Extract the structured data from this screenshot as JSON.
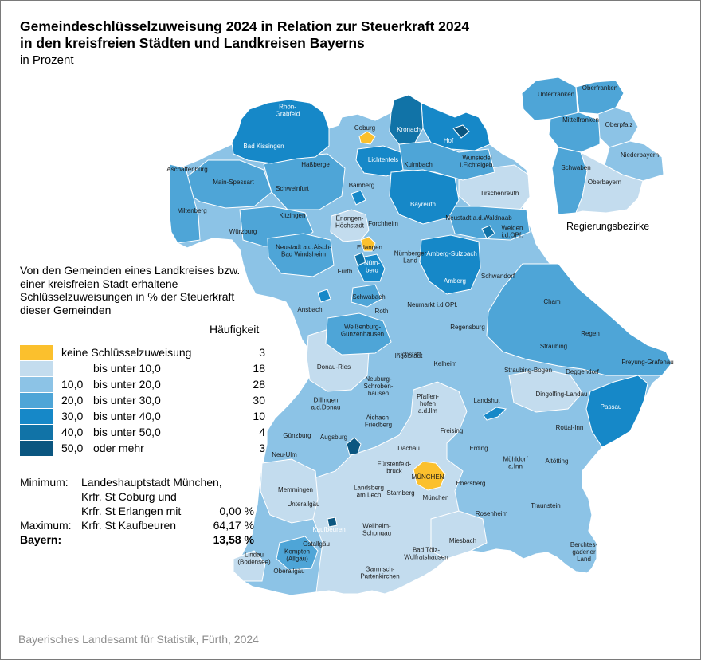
{
  "title_line1": "Gemeindeschlüsselzuweisung 2024 in Relation zur Steuerkraft 2024",
  "title_line2": "in den kreisfreien Städten und Landkreisen Bayerns",
  "subtitle": "in Prozent",
  "legend": {
    "description": "Von den Gemeinden eines Landkreises bzw. einer kreisfreien Stadt erhaltene Schlüsselzuweisungen in % der Steuerkraft dieser Gemeinden",
    "frequency_header": "Häufigkeit",
    "classes": [
      {
        "from": "",
        "label": "keine Schlüsselzuweisung",
        "count": "3",
        "color": "#fbc02d"
      },
      {
        "from": "",
        "label": "bis unter  10,0",
        "count": "18",
        "color": "#c3dcee"
      },
      {
        "from": "10,0",
        "label": "bis unter  20,0",
        "count": "28",
        "color": "#8cc3e6"
      },
      {
        "from": "20,0",
        "label": "bis unter  30,0",
        "count": "30",
        "color": "#4ea5d7"
      },
      {
        "from": "30,0",
        "label": "bis unter  40,0",
        "count": "10",
        "color": "#1688c8"
      },
      {
        "from": "40,0",
        "label": "bis unter  50,0",
        "count": "4",
        "color": "#1173a7"
      },
      {
        "from": "50,0",
        "label": "oder mehr",
        "count": "3",
        "color": "#0b5680"
      }
    ]
  },
  "stats": {
    "minimum_label": "Minimum:",
    "minimum_line1": "Landeshauptstadt München,",
    "minimum_line2": "Krfr. St Coburg und",
    "minimum_line3": "Krfr. St Erlangen mit",
    "minimum_value": "0,00 %",
    "maximum_label": "Maximum:",
    "maximum_name": "Krfr. St Kaufbeuren",
    "maximum_value": "64,17 %",
    "bayern_label": "Bayern:",
    "bayern_value": "13,58 %"
  },
  "inset_caption": "Regierungsbezirke",
  "source": "Bayerisches Landesamt für Statistik, Fürth, 2024",
  "map_regions": [
    {
      "name": "Rhön-Grabfeld",
      "class": 4
    },
    {
      "name": "Bad Kissingen",
      "class": 4
    },
    {
      "name": "Coburg",
      "class": 0
    },
    {
      "name": "Kronach",
      "class": 5
    },
    {
      "name": "Hof",
      "class": 4
    },
    {
      "name": "Lichtenfels",
      "class": 4
    },
    {
      "name": "Kulmbach",
      "class": 3
    },
    {
      "name": "Wunsiedel i.Fichtelgeb.",
      "class": 3
    },
    {
      "name": "Aschaffenburg",
      "class": 3
    },
    {
      "name": "Main-Spessart",
      "class": 3
    },
    {
      "name": "Haßberge",
      "class": 3
    },
    {
      "name": "Schweinfurt",
      "class": 3
    },
    {
      "name": "Bamberg",
      "class": 2
    },
    {
      "name": "Bayreuth",
      "class": 4
    },
    {
      "name": "Tirschenreuth",
      "class": 1
    },
    {
      "name": "Miltenberg",
      "class": 3
    },
    {
      "name": "Kitzingen",
      "class": 3
    },
    {
      "name": "Würzburg",
      "class": 3
    },
    {
      "name": "Erlangen-Höchstadt",
      "class": 1
    },
    {
      "name": "Forchheim",
      "class": 2
    },
    {
      "name": "Neustadt a.d.Waldnaab",
      "class": 3
    },
    {
      "name": "Weiden i.d.OPf.",
      "class": 3
    },
    {
      "name": "Erlangen",
      "class": 0
    },
    {
      "name": "Neustadt a.d.Aisch-Bad Windsheim",
      "class": 3
    },
    {
      "name": "Nürnberger Land",
      "class": 2
    },
    {
      "name": "Amberg-Sulzbach",
      "class": 4
    },
    {
      "name": "Amberg",
      "class": 4
    },
    {
      "name": "Fürth",
      "class": 3
    },
    {
      "name": "Nürnberg",
      "class": 4
    },
    {
      "name": "Schwandorf",
      "class": 2
    },
    {
      "name": "Ansbach",
      "class": 2
    },
    {
      "name": "Schwabach",
      "class": 3
    },
    {
      "name": "Roth",
      "class": 2
    },
    {
      "name": "Neumarkt i.d.OPf.",
      "class": 2
    },
    {
      "name": "Cham",
      "class": 3
    },
    {
      "name": "Weißenburg-Gunzenhausen",
      "class": 3
    },
    {
      "name": "Regensburg",
      "class": 2
    },
    {
      "name": "Regen",
      "class": 3
    },
    {
      "name": "Eichstätt",
      "class": 2
    },
    {
      "name": "Straubing",
      "class": 3
    },
    {
      "name": "Freyung-Grafenau",
      "class": 3
    },
    {
      "name": "Donau-Ries",
      "class": 1
    },
    {
      "name": "Ingolstadt",
      "class": 2
    },
    {
      "name": "Kelheim",
      "class": 2
    },
    {
      "name": "Straubing-Bogen",
      "class": 3
    },
    {
      "name": "Deggendorf",
      "class": 2
    },
    {
      "name": "Neuburg-Schrobenhausen",
      "class": 2
    },
    {
      "name": "Landshut",
      "class": 2
    },
    {
      "name": "Dingolfing-Landau",
      "class": 1
    },
    {
      "name": "Dillingen a.d.Donau",
      "class": 2
    },
    {
      "name": "Pfaffenhofen a.d.Ilm",
      "class": 1
    },
    {
      "name": "Passau",
      "class": 4
    },
    {
      "name": "Aichach-Friedberg",
      "class": 2
    },
    {
      "name": "Günzburg",
      "class": 2
    },
    {
      "name": "Augsburg",
      "class": 2
    },
    {
      "name": "Freising",
      "class": 1
    },
    {
      "name": "Rottal-Inn",
      "class": 2
    },
    {
      "name": "Dachau",
      "class": 1
    },
    {
      "name": "Erding",
      "class": 2
    },
    {
      "name": "Neu-Ulm",
      "class": 2
    },
    {
      "name": "Mühldorf a.Inn",
      "class": 2
    },
    {
      "name": "Altötting",
      "class": 2
    },
    {
      "name": "Fürstenfeldbruck",
      "class": 1
    },
    {
      "name": "MÜNCHEN",
      "class": 0
    },
    {
      "name": "Ebersberg",
      "class": 1
    },
    {
      "name": "Memmingen",
      "class": 1
    },
    {
      "name": "Unterallgäu",
      "class": 1
    },
    {
      "name": "Landsberg am Lech",
      "class": 1
    },
    {
      "name": "Starnberg",
      "class": 1
    },
    {
      "name": "München",
      "class": 1
    },
    {
      "name": "Traunstein",
      "class": 2
    },
    {
      "name": "Rosenheim",
      "class": 2
    },
    {
      "name": "Kaufbeuren",
      "class": 6
    },
    {
      "name": "Ostallgäu",
      "class": 2
    },
    {
      "name": "Weilheim-Schongau",
      "class": 2
    },
    {
      "name": "Miesbach",
      "class": 1
    },
    {
      "name": "Kempten (Allgäu)",
      "class": 3
    },
    {
      "name": "Bad Tölz-Wolfratshausen",
      "class": 2
    },
    {
      "name": "Berchtes-gadener Land",
      "class": 2
    },
    {
      "name": "Lindau (Bodensee)",
      "class": 1
    },
    {
      "name": "Oberallgäu",
      "class": 2
    },
    {
      "name": "Garmisch-Partenkirchen",
      "class": 2
    }
  ],
  "inset_regions": [
    {
      "name": "Unterfranken",
      "class": 3
    },
    {
      "name": "Oberfranken",
      "class": 3
    },
    {
      "name": "Mittelfranken",
      "class": 3
    },
    {
      "name": "Oberpfalz",
      "class": 2
    },
    {
      "name": "Niederbayern",
      "class": 2
    },
    {
      "name": "Schwaben",
      "class": 3
    },
    {
      "name": "Oberbayern",
      "class": 1
    }
  ]
}
